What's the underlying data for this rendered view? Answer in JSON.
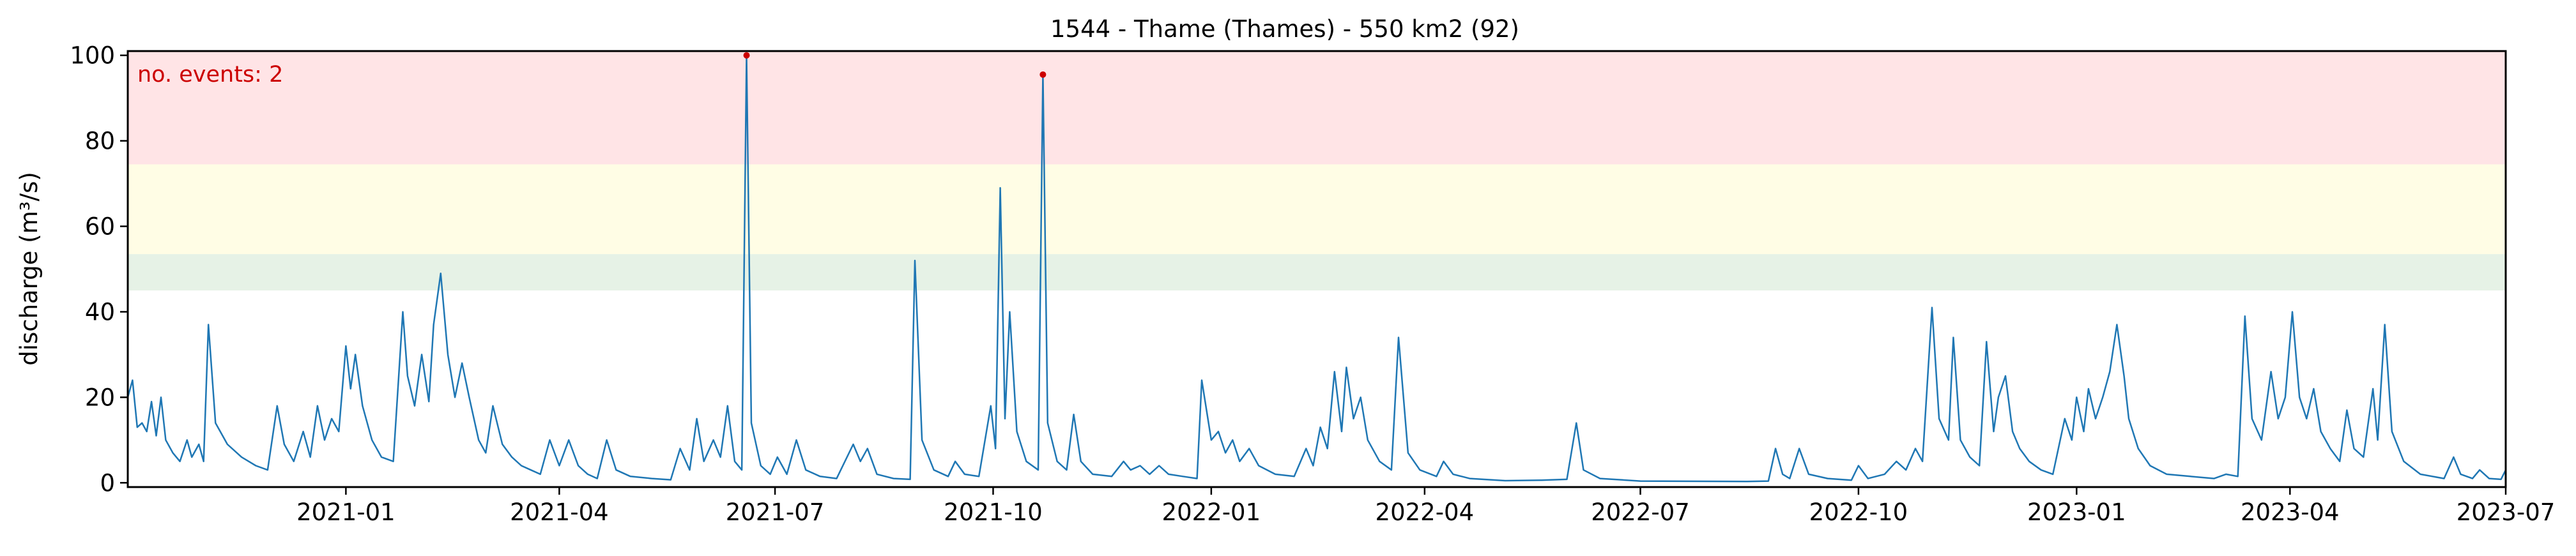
{
  "chart_data": {
    "type": "line",
    "title": "1544 - Thame (Thames) - 550 km2 (92)",
    "xlabel": "",
    "ylabel": "discharge (m³/s)",
    "xlim": [
      "2020-10-01",
      "2023-07-01"
    ],
    "ylim": [
      -1,
      101
    ],
    "x_ticks": [
      "2021-01",
      "2021-04",
      "2021-07",
      "2021-10",
      "2022-01",
      "2022-04",
      "2022-07",
      "2022-10",
      "2023-01",
      "2023-04",
      "2023-07"
    ],
    "y_ticks": [
      0,
      20,
      40,
      60,
      80,
      100
    ],
    "grid": false,
    "bands": [
      {
        "y0": 45,
        "y1": 53.5,
        "color": "#e6f2e6"
      },
      {
        "y0": 53.5,
        "y1": 74.5,
        "color": "#fffde5"
      },
      {
        "y0": 74.5,
        "y1": 101,
        "color": "#ffe4e6"
      }
    ],
    "annotation": {
      "text": "no. events: 2",
      "color": "#cc0000"
    },
    "line_color": "#1f77b4",
    "marker_color": "#cc0000",
    "events": [
      {
        "date": "2021-06-19",
        "value": 100
      },
      {
        "date": "2021-10-22",
        "value": 95.5
      }
    ],
    "series": [
      {
        "values": [
          [
            "2020-10-01",
            20
          ],
          [
            "2020-10-03",
            24
          ],
          [
            "2020-10-05",
            13
          ],
          [
            "2020-10-07",
            14
          ],
          [
            "2020-10-09",
            12
          ],
          [
            "2020-10-11",
            19
          ],
          [
            "2020-10-13",
            11
          ],
          [
            "2020-10-15",
            20
          ],
          [
            "2020-10-17",
            10
          ],
          [
            "2020-10-20",
            7
          ],
          [
            "2020-10-23",
            5
          ],
          [
            "2020-10-26",
            10
          ],
          [
            "2020-10-28",
            6
          ],
          [
            "2020-10-31",
            9
          ],
          [
            "2020-11-02",
            5
          ],
          [
            "2020-11-04",
            37
          ],
          [
            "2020-11-07",
            14
          ],
          [
            "2020-11-12",
            9
          ],
          [
            "2020-11-18",
            6
          ],
          [
            "2020-11-24",
            4
          ],
          [
            "2020-11-29",
            3
          ],
          [
            "2020-12-03",
            18
          ],
          [
            "2020-12-06",
            9
          ],
          [
            "2020-12-10",
            5
          ],
          [
            "2020-12-14",
            12
          ],
          [
            "2020-12-17",
            6
          ],
          [
            "2020-12-20",
            18
          ],
          [
            "2020-12-23",
            10
          ],
          [
            "2020-12-26",
            15
          ],
          [
            "2020-12-29",
            12
          ],
          [
            "2021-01-01",
            32
          ],
          [
            "2021-01-03",
            22
          ],
          [
            "2021-01-05",
            30
          ],
          [
            "2021-01-08",
            18
          ],
          [
            "2021-01-12",
            10
          ],
          [
            "2021-01-16",
            6
          ],
          [
            "2021-01-21",
            5
          ],
          [
            "2021-01-25",
            40
          ],
          [
            "2021-01-27",
            25
          ],
          [
            "2021-01-30",
            18
          ],
          [
            "2021-02-02",
            30
          ],
          [
            "2021-02-05",
            19
          ],
          [
            "2021-02-07",
            37
          ],
          [
            "2021-02-10",
            49
          ],
          [
            "2021-02-13",
            30
          ],
          [
            "2021-02-16",
            20
          ],
          [
            "2021-02-19",
            28
          ],
          [
            "2021-02-22",
            20
          ],
          [
            "2021-02-26",
            10
          ],
          [
            "2021-03-01",
            7
          ],
          [
            "2021-03-04",
            18
          ],
          [
            "2021-03-08",
            9
          ],
          [
            "2021-03-12",
            6
          ],
          [
            "2021-03-16",
            4
          ],
          [
            "2021-03-20",
            3
          ],
          [
            "2021-03-24",
            2
          ],
          [
            "2021-03-28",
            10
          ],
          [
            "2021-04-01",
            4
          ],
          [
            "2021-04-05",
            10
          ],
          [
            "2021-04-09",
            4
          ],
          [
            "2021-04-13",
            2
          ],
          [
            "2021-04-17",
            1
          ],
          [
            "2021-04-21",
            10
          ],
          [
            "2021-04-25",
            3
          ],
          [
            "2021-05-01",
            1.5
          ],
          [
            "2021-05-10",
            1
          ],
          [
            "2021-05-18",
            0.7
          ],
          [
            "2021-05-22",
            8
          ],
          [
            "2021-05-26",
            3
          ],
          [
            "2021-05-29",
            15
          ],
          [
            "2021-06-01",
            5
          ],
          [
            "2021-06-05",
            10
          ],
          [
            "2021-06-08",
            6
          ],
          [
            "2021-06-11",
            18
          ],
          [
            "2021-06-14",
            5
          ],
          [
            "2021-06-17",
            3
          ],
          [
            "2021-06-19",
            100
          ],
          [
            "2021-06-21",
            14
          ],
          [
            "2021-06-25",
            4
          ],
          [
            "2021-06-29",
            2
          ],
          [
            "2021-07-02",
            6
          ],
          [
            "2021-07-06",
            2
          ],
          [
            "2021-07-10",
            10
          ],
          [
            "2021-07-14",
            3
          ],
          [
            "2021-07-20",
            1.5
          ],
          [
            "2021-07-27",
            1
          ],
          [
            "2021-08-03",
            9
          ],
          [
            "2021-08-06",
            5
          ],
          [
            "2021-08-09",
            8
          ],
          [
            "2021-08-13",
            2
          ],
          [
            "2021-08-20",
            1
          ],
          [
            "2021-08-27",
            0.8
          ],
          [
            "2021-08-29",
            52
          ],
          [
            "2021-09-01",
            10
          ],
          [
            "2021-09-06",
            3
          ],
          [
            "2021-09-12",
            1.5
          ],
          [
            "2021-09-15",
            5
          ],
          [
            "2021-09-19",
            2
          ],
          [
            "2021-09-25",
            1.5
          ],
          [
            "2021-09-30",
            18
          ],
          [
            "2021-10-02",
            8
          ],
          [
            "2021-10-04",
            69
          ],
          [
            "2021-10-06",
            15
          ],
          [
            "2021-10-08",
            40
          ],
          [
            "2021-10-11",
            12
          ],
          [
            "2021-10-15",
            5
          ],
          [
            "2021-10-20",
            3
          ],
          [
            "2021-10-22",
            95.5
          ],
          [
            "2021-10-24",
            14
          ],
          [
            "2021-10-28",
            5
          ],
          [
            "2021-11-01",
            3
          ],
          [
            "2021-11-04",
            16
          ],
          [
            "2021-11-07",
            5
          ],
          [
            "2021-11-12",
            2
          ],
          [
            "2021-11-20",
            1.5
          ],
          [
            "2021-11-25",
            5
          ],
          [
            "2021-11-28",
            3
          ],
          [
            "2021-12-02",
            4
          ],
          [
            "2021-12-06",
            2
          ],
          [
            "2021-12-10",
            4
          ],
          [
            "2021-12-14",
            2
          ],
          [
            "2021-12-20",
            1.5
          ],
          [
            "2021-12-26",
            1
          ],
          [
            "2021-12-28",
            24
          ],
          [
            "2022-01-01",
            10
          ],
          [
            "2022-01-04",
            12
          ],
          [
            "2022-01-07",
            7
          ],
          [
            "2022-01-10",
            10
          ],
          [
            "2022-01-13",
            5
          ],
          [
            "2022-01-17",
            8
          ],
          [
            "2022-01-21",
            4
          ],
          [
            "2022-01-28",
            2
          ],
          [
            "2022-02-05",
            1.5
          ],
          [
            "2022-02-10",
            8
          ],
          [
            "2022-02-13",
            4
          ],
          [
            "2022-02-16",
            13
          ],
          [
            "2022-02-19",
            8
          ],
          [
            "2022-02-22",
            26
          ],
          [
            "2022-02-25",
            12
          ],
          [
            "2022-02-27",
            27
          ],
          [
            "2022-03-02",
            15
          ],
          [
            "2022-03-05",
            20
          ],
          [
            "2022-03-08",
            10
          ],
          [
            "2022-03-13",
            5
          ],
          [
            "2022-03-18",
            3
          ],
          [
            "2022-03-21",
            34
          ],
          [
            "2022-03-25",
            7
          ],
          [
            "2022-03-30",
            3
          ],
          [
            "2022-04-06",
            1.5
          ],
          [
            "2022-04-09",
            5
          ],
          [
            "2022-04-13",
            2
          ],
          [
            "2022-04-20",
            1
          ],
          [
            "2022-05-05",
            0.5
          ],
          [
            "2022-05-20",
            0.6
          ],
          [
            "2022-05-31",
            0.8
          ],
          [
            "2022-06-04",
            14
          ],
          [
            "2022-06-07",
            3
          ],
          [
            "2022-06-14",
            1
          ],
          [
            "2022-07-01",
            0.4
          ],
          [
            "2022-08-15",
            0.3
          ],
          [
            "2022-08-24",
            0.4
          ],
          [
            "2022-08-27",
            8
          ],
          [
            "2022-08-30",
            2
          ],
          [
            "2022-09-02",
            1
          ],
          [
            "2022-09-06",
            8
          ],
          [
            "2022-09-10",
            2
          ],
          [
            "2022-09-18",
            1
          ],
          [
            "2022-09-28",
            0.6
          ],
          [
            "2022-10-01",
            4
          ],
          [
            "2022-10-05",
            1
          ],
          [
            "2022-10-12",
            2
          ],
          [
            "2022-10-17",
            5
          ],
          [
            "2022-10-21",
            3
          ],
          [
            "2022-10-25",
            8
          ],
          [
            "2022-10-28",
            5
          ],
          [
            "2022-11-01",
            41
          ],
          [
            "2022-11-04",
            15
          ],
          [
            "2022-11-08",
            10
          ],
          [
            "2022-11-10",
            34
          ],
          [
            "2022-11-13",
            10
          ],
          [
            "2022-11-17",
            6
          ],
          [
            "2022-11-21",
            4
          ],
          [
            "2022-11-24",
            33
          ],
          [
            "2022-11-27",
            12
          ],
          [
            "2022-11-29",
            20
          ],
          [
            "2022-12-02",
            25
          ],
          [
            "2022-12-05",
            12
          ],
          [
            "2022-12-08",
            8
          ],
          [
            "2022-12-12",
            5
          ],
          [
            "2022-12-17",
            3
          ],
          [
            "2022-12-22",
            2
          ],
          [
            "2022-12-27",
            15
          ],
          [
            "2022-12-30",
            10
          ],
          [
            "2023-01-01",
            20
          ],
          [
            "2023-01-04",
            12
          ],
          [
            "2023-01-06",
            22
          ],
          [
            "2023-01-09",
            15
          ],
          [
            "2023-01-12",
            20
          ],
          [
            "2023-01-15",
            26
          ],
          [
            "2023-01-18",
            37
          ],
          [
            "2023-01-21",
            25
          ],
          [
            "2023-01-23",
            15
          ],
          [
            "2023-01-27",
            8
          ],
          [
            "2023-02-01",
            4
          ],
          [
            "2023-02-08",
            2
          ],
          [
            "2023-02-18",
            1.5
          ],
          [
            "2023-02-28",
            1
          ],
          [
            "2023-03-05",
            2
          ],
          [
            "2023-03-10",
            1.5
          ],
          [
            "2023-03-13",
            39
          ],
          [
            "2023-03-16",
            15
          ],
          [
            "2023-03-20",
            10
          ],
          [
            "2023-03-24",
            26
          ],
          [
            "2023-03-27",
            15
          ],
          [
            "2023-03-30",
            20
          ],
          [
            "2023-04-02",
            40
          ],
          [
            "2023-04-05",
            20
          ],
          [
            "2023-04-08",
            15
          ],
          [
            "2023-04-11",
            22
          ],
          [
            "2023-04-14",
            12
          ],
          [
            "2023-04-18",
            8
          ],
          [
            "2023-04-22",
            5
          ],
          [
            "2023-04-25",
            17
          ],
          [
            "2023-04-28",
            8
          ],
          [
            "2023-05-02",
            6
          ],
          [
            "2023-05-06",
            22
          ],
          [
            "2023-05-08",
            10
          ],
          [
            "2023-05-11",
            37
          ],
          [
            "2023-05-14",
            12
          ],
          [
            "2023-05-19",
            5
          ],
          [
            "2023-05-26",
            2
          ],
          [
            "2023-06-05",
            1
          ],
          [
            "2023-06-09",
            6
          ],
          [
            "2023-06-12",
            2
          ],
          [
            "2023-06-17",
            1
          ],
          [
            "2023-06-20",
            3
          ],
          [
            "2023-06-24",
            1
          ],
          [
            "2023-06-29",
            0.8
          ],
          [
            "2023-07-01",
            3
          ]
        ]
      }
    ]
  }
}
